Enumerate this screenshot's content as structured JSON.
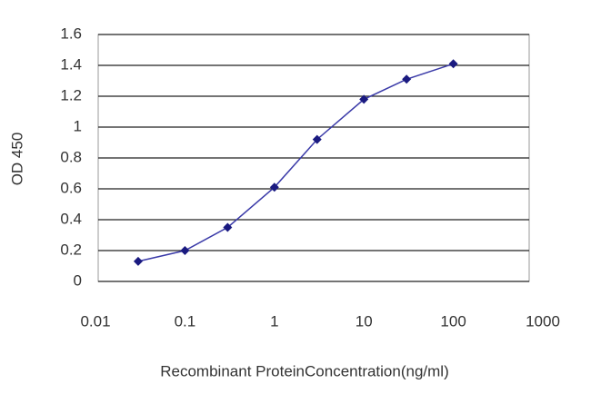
{
  "chart_data": {
    "type": "line",
    "x_label": "Recombinant ProteinConcentration(ng/ml)",
    "y_label": "OD 450",
    "x": [
      0.03,
      0.1,
      0.3,
      1,
      3,
      10,
      30,
      100
    ],
    "series": [
      {
        "color": "#3a3aa8",
        "marker_color": "#1a1a80",
        "values": [
          0.13,
          0.2,
          0.35,
          0.61,
          0.92,
          1.18,
          1.31,
          1.41
        ]
      }
    ],
    "x_log": true,
    "xlim": [
      0.01,
      1000
    ],
    "xticks": [
      0.01,
      0.1,
      1,
      10,
      100,
      1000
    ],
    "ylim": [
      0,
      1.6
    ],
    "yticks": [
      0,
      0.2,
      0.4,
      0.6,
      0.8,
      1,
      1.2,
      1.4,
      1.6
    ],
    "grid": true
  }
}
